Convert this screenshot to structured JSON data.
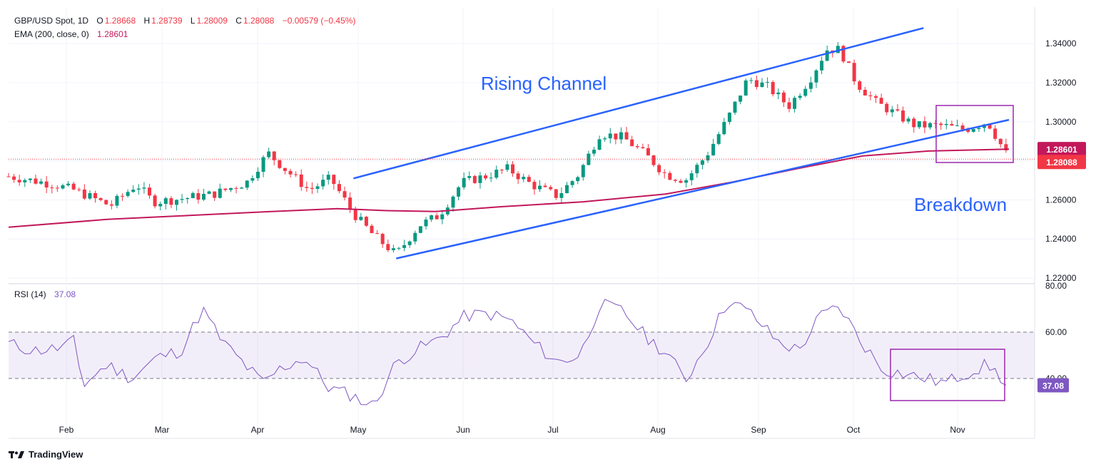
{
  "header": {
    "symbol": "GBP/USD Spot, 1D",
    "o_label": "O",
    "o_value": "1.28668",
    "h_label": "H",
    "h_value": "1.28739",
    "l_label": "L",
    "l_value": "1.28009",
    "c_label": "C",
    "c_value": "1.28088",
    "change": "−0.00579 (−0.45%)",
    "ema_label": "EMA (200, close, 0)",
    "ema_value": "1.28601",
    "rsi_label": "RSI (14)",
    "rsi_value": "37.08"
  },
  "annotations": {
    "rising_channel": "Rising Channel",
    "breakdown": "Breakdown"
  },
  "price_badges": {
    "ema": "1.28601",
    "close": "1.28088"
  },
  "rsi_badge": "37.08",
  "branding": {
    "name": "TradingView"
  },
  "colors": {
    "up": "#089981",
    "down": "#f23645",
    "ema": "#c2185b",
    "channel": "#2962ff",
    "rsi": "#7e57c2",
    "box": "#9c27b0"
  },
  "chart_data": [
    {
      "type": "candlestick",
      "title": "GBP/USD Spot, 1D",
      "x_ticks": [
        "Feb",
        "Mar",
        "Apr",
        "May",
        "Jun",
        "Jul",
        "Aug",
        "Sep",
        "Oct",
        "Nov"
      ],
      "y_ticks": [
        "1.22000",
        "1.24000",
        "1.26000",
        "1.28000",
        "1.30000",
        "1.32000",
        "1.34000"
      ],
      "ylim": [
        1.22,
        1.35
      ],
      "ohlc": {
        "open": "1.28668",
        "high": "1.28739",
        "low": "1.28009",
        "close": "1.28088",
        "change": "−0.00579 (−0.45%)"
      },
      "series": [
        {
          "name": "GBP/USD",
          "path": [
            [
              0,
              1.272
            ],
            [
              14,
              1.27
            ],
            [
              27,
              1.268
            ],
            [
              40,
              1.265
            ],
            [
              62,
              1.257
            ],
            [
              78,
              1.268
            ],
            [
              88,
              1.259
            ],
            [
              100,
              1.26
            ],
            [
              125,
              1.263
            ],
            [
              145,
              1.269
            ],
            [
              158,
              1.284
            ],
            [
              168,
              1.276
            ],
            [
              183,
              1.265
            ],
            [
              196,
              1.271
            ],
            [
              210,
              1.253
            ],
            [
              222,
              1.242
            ],
            [
              236,
              1.232
            ],
            [
              250,
              1.247
            ],
            [
              262,
              1.252
            ],
            [
              276,
              1.269
            ],
            [
              290,
              1.272
            ],
            [
              304,
              1.276
            ],
            [
              318,
              1.268
            ],
            [
              334,
              1.262
            ],
            [
              347,
              1.273
            ],
            [
              360,
              1.294
            ],
            [
              374,
              1.292
            ],
            [
              388,
              1.283
            ],
            [
              400,
              1.273
            ],
            [
              412,
              1.27
            ],
            [
              425,
              1.283
            ],
            [
              438,
              1.302
            ],
            [
              450,
              1.322
            ],
            [
              462,
              1.318
            ],
            [
              475,
              1.308
            ],
            [
              488,
              1.322
            ],
            [
              498,
              1.337
            ],
            [
              506,
              1.337
            ],
            [
              516,
              1.32
            ],
            [
              528,
              1.31
            ],
            [
              540,
              1.304
            ],
            [
              552,
              1.298
            ],
            [
              568,
              1.298
            ],
            [
              582,
              1.296
            ],
            [
              596,
              1.3
            ],
            [
              609,
              1.281
            ]
          ]
        },
        {
          "name": "EMA (200, close, 0)",
          "path": [
            [
              0,
              1.246
            ],
            [
              60,
              1.25
            ],
            [
              110,
              1.252
            ],
            [
              160,
              1.254
            ],
            [
              200,
              1.2555
            ],
            [
              230,
              1.2545
            ],
            [
              260,
              1.254
            ],
            [
              300,
              1.2565
            ],
            [
              350,
              1.259
            ],
            [
              400,
              1.263
            ],
            [
              440,
              1.269
            ],
            [
              480,
              1.276
            ],
            [
              520,
              1.2825
            ],
            [
              560,
              1.285
            ],
            [
              609,
              1.286
            ]
          ]
        },
        {
          "name": "Rising Channel upper",
          "path": [
            [
              210,
              1.271
            ],
            [
              557,
              1.348
            ]
          ]
        },
        {
          "name": "Rising Channel lower",
          "path": [
            [
              236,
              1.23
            ],
            [
              609,
              1.301
            ]
          ]
        }
      ]
    },
    {
      "type": "line",
      "title": "RSI (14)",
      "y_ticks": [
        "40.00",
        "60.00",
        "80.00"
      ],
      "ylim": [
        22,
        82
      ],
      "bands": [
        40,
        60
      ],
      "series": [
        {
          "name": "RSI (14)",
          "path": [
            [
              0,
              55
            ],
            [
              15,
              52
            ],
            [
              30,
              53
            ],
            [
              40,
              56
            ],
            [
              45,
              37
            ],
            [
              60,
              46
            ],
            [
              75,
              40
            ],
            [
              90,
              49
            ],
            [
              105,
              52
            ],
            [
              118,
              70
            ],
            [
              130,
              56
            ],
            [
              145,
              45
            ],
            [
              155,
              38
            ],
            [
              165,
              44
            ],
            [
              180,
              49
            ],
            [
              195,
              36
            ],
            [
              208,
              33
            ],
            [
              222,
              28
            ],
            [
              236,
              47
            ],
            [
              250,
              53
            ],
            [
              262,
              57
            ],
            [
              278,
              67
            ],
            [
              292,
              68
            ],
            [
              306,
              65
            ],
            [
              320,
              55
            ],
            [
              334,
              47
            ],
            [
              348,
              50
            ],
            [
              360,
              72
            ],
            [
              374,
              69
            ],
            [
              388,
              58
            ],
            [
              402,
              50
            ],
            [
              412,
              39
            ],
            [
              425,
              55
            ],
            [
              438,
              74
            ],
            [
              452,
              68
            ],
            [
              468,
              56
            ],
            [
              481,
              52
            ],
            [
              494,
              67
            ],
            [
              506,
              71
            ],
            [
              518,
              57
            ],
            [
              532,
              44
            ],
            [
              545,
              42
            ],
            [
              558,
              40
            ],
            [
              570,
              38
            ],
            [
              582,
              42
            ],
            [
              596,
              46
            ],
            [
              609,
              37.08
            ]
          ]
        }
      ]
    }
  ]
}
